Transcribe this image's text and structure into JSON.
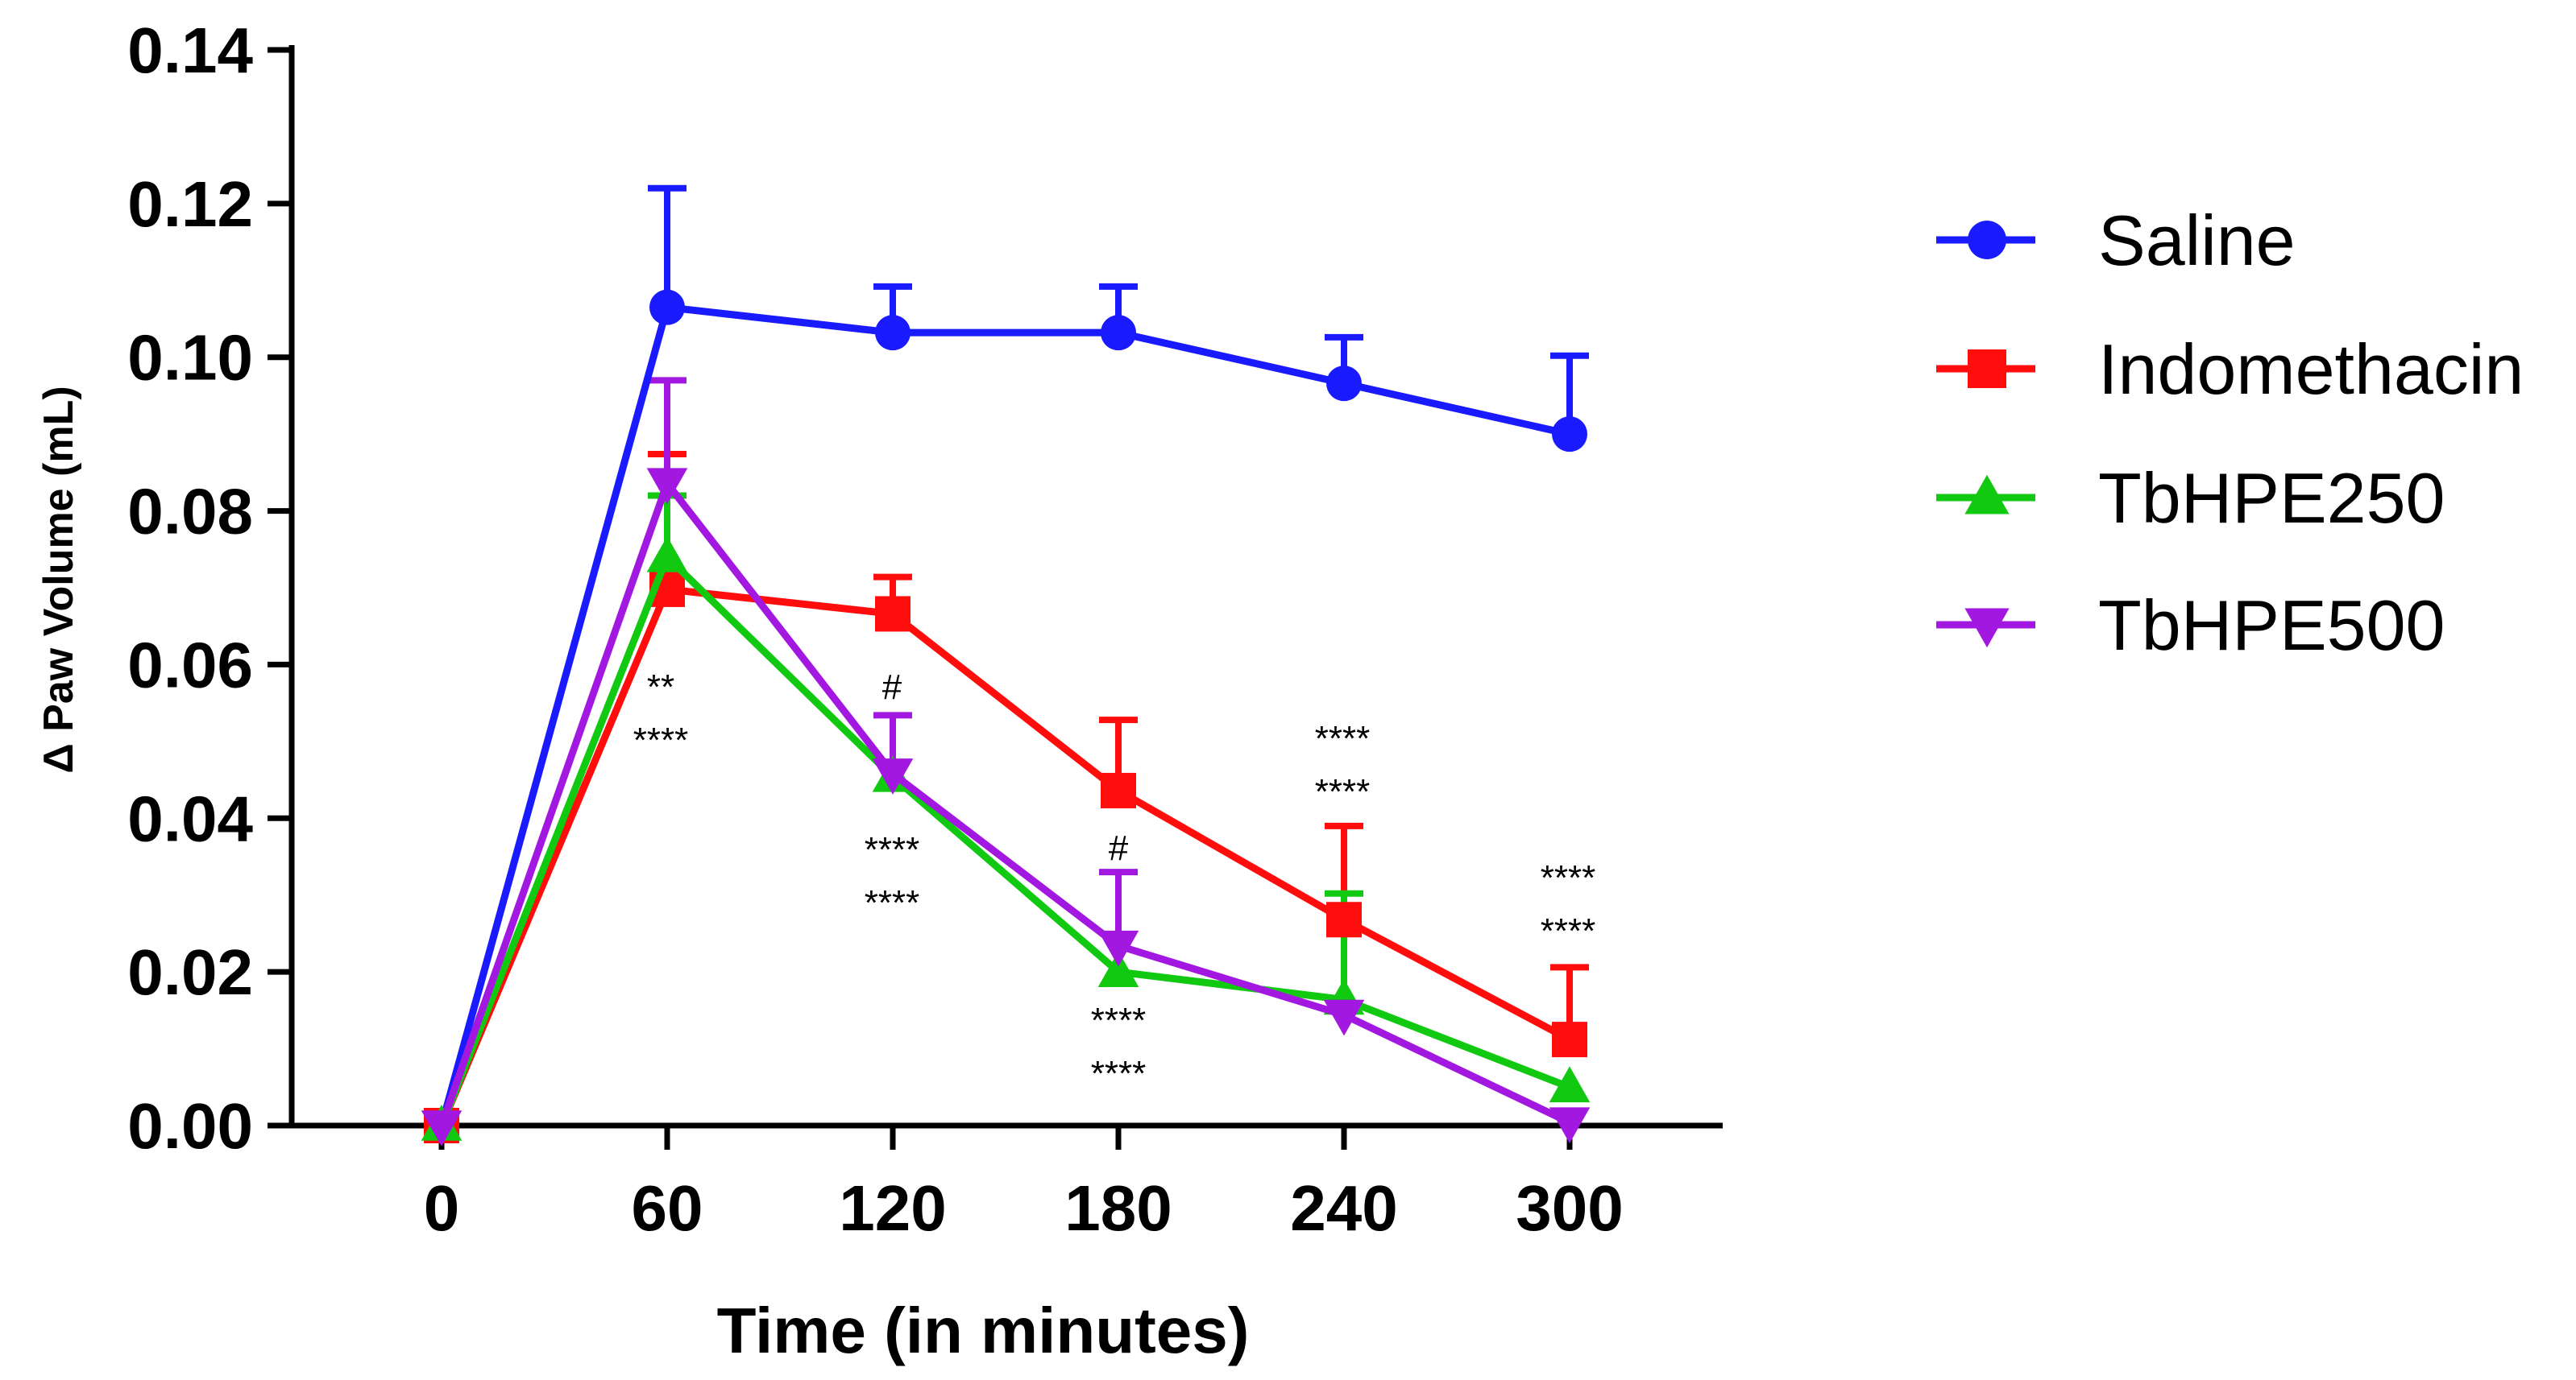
{
  "chart_data": {
    "type": "line",
    "title": "",
    "xlabel": "Time (in minutes)",
    "ylabel": "Δ Paw Volume  (mL)",
    "x": [
      0,
      60,
      120,
      180,
      240,
      300
    ],
    "x_tick_labels": [
      "0",
      "60",
      "120",
      "180",
      "240",
      "300"
    ],
    "xlim": [
      -30,
      340
    ],
    "ylim": [
      0,
      0.14
    ],
    "y_ticks": [
      0,
      0.02,
      0.04,
      0.06,
      0.08,
      0.1,
      0.12,
      0.14
    ],
    "y_tick_labels": [
      "0.00",
      "0.02",
      "0.04",
      "0.06",
      "0.08",
      "0.10",
      "0.12",
      "0.14"
    ],
    "grid": false,
    "legend_position": "right",
    "series": [
      {
        "name": "Saline",
        "color": "#1a1aff",
        "marker": "circle",
        "values": [
          0,
          0.1065,
          0.1032,
          0.1032,
          0.0966,
          0.09
        ],
        "error_upper": [
          null,
          0.122,
          0.1092,
          0.1092,
          0.1026,
          0.1002
        ]
      },
      {
        "name": "Indomethacin",
        "color": "#ff0d0d",
        "marker": "square",
        "values": [
          0,
          0.0698,
          0.0666,
          0.0436,
          0.0268,
          0.0112
        ],
        "error_upper": [
          null,
          0.0874,
          0.0714,
          0.0528,
          0.039,
          0.0206
        ]
      },
      {
        "name": "TbHPE250",
        "color": "#12c912",
        "marker": "triangle-up",
        "values": [
          0,
          0.074,
          0.0454,
          0.02,
          0.0164,
          0.005
        ],
        "error_upper": [
          null,
          0.082,
          null,
          null,
          0.0302,
          null
        ]
      },
      {
        "name": "TbHPE500",
        "color": "#a318e0",
        "marker": "triangle-down",
        "values": [
          0,
          0.0836,
          0.0458,
          0.0234,
          0.0144,
          0.0004
        ],
        "error_upper": [
          null,
          0.097,
          0.0534,
          0.033,
          null,
          null
        ]
      }
    ],
    "annotations": [
      {
        "x": 60,
        "lines": [
          "**",
          "****"
        ]
      },
      {
        "x": 120,
        "lines": [
          "#"
        ]
      },
      {
        "x": 120,
        "lines": [
          "****",
          "****"
        ]
      },
      {
        "x": 180,
        "lines": [
          "#"
        ]
      },
      {
        "x": 180,
        "lines": [
          "****",
          "****"
        ]
      },
      {
        "x": 240,
        "lines": [
          "****",
          "****"
        ]
      },
      {
        "x": 300,
        "lines": [
          "****",
          "****"
        ]
      }
    ]
  }
}
